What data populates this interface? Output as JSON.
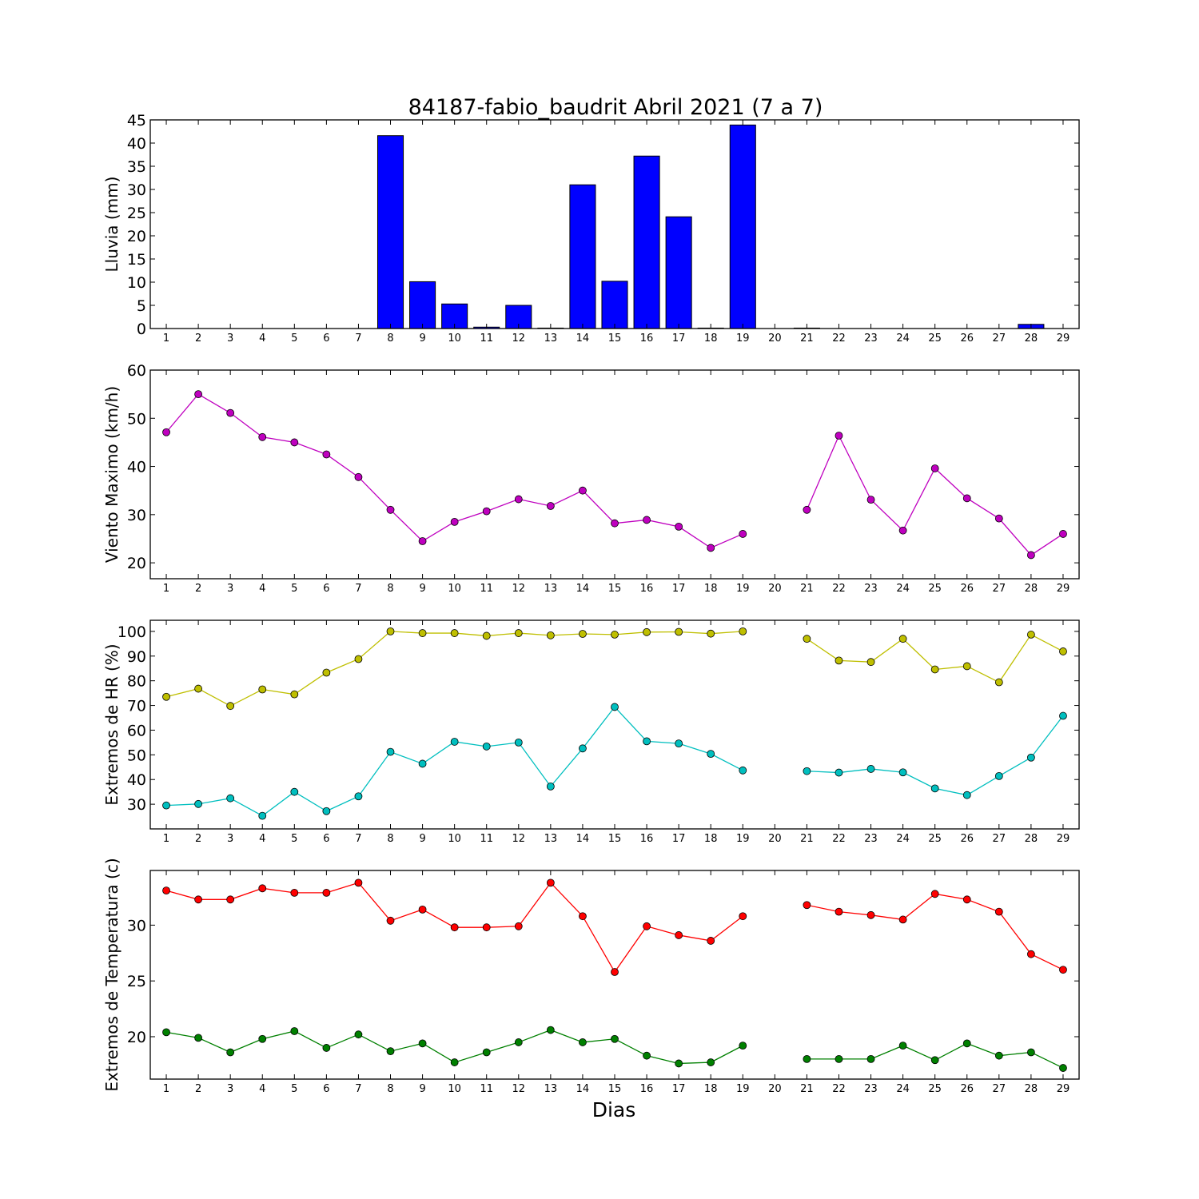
{
  "title": "84187-fabio_baudrit Abril 2021  (7 a 7)",
  "xlabel": "Dias",
  "chart_data": [
    {
      "type": "bar",
      "ylabel": "Lluvia (mm)",
      "categories": [
        1,
        2,
        3,
        4,
        5,
        6,
        7,
        8,
        9,
        10,
        11,
        12,
        13,
        14,
        15,
        16,
        17,
        18,
        19,
        20,
        21,
        22,
        23,
        24,
        25,
        26,
        27,
        28,
        29
      ],
      "x_ticks": [
        "1",
        "2",
        "3",
        "4",
        "5",
        "6",
        "7",
        "8",
        "9",
        "10",
        "11",
        "12",
        "13",
        "14",
        "15",
        "16",
        "17",
        "18",
        "19",
        "20",
        "21",
        "22",
        "23",
        "24",
        "25",
        "26",
        "27",
        "28",
        "29"
      ],
      "ylim": [
        0,
        45
      ],
      "y_ticks": [
        "0",
        "5",
        "10",
        "15",
        "20",
        "25",
        "30",
        "35",
        "40",
        "45"
      ],
      "y_tick_values": [
        0,
        5,
        10,
        15,
        20,
        25,
        30,
        35,
        40,
        45
      ],
      "values": [
        0,
        0,
        0,
        0,
        0,
        0,
        0,
        41.6,
        10.1,
        5.3,
        0.3,
        5.0,
        0.1,
        31.0,
        10.2,
        37.2,
        24.1,
        0.1,
        43.9,
        null,
        0.1,
        0,
        0,
        0,
        0,
        0,
        0,
        0.9,
        null
      ],
      "color": "#0000ff"
    },
    {
      "type": "line",
      "ylabel": "Viento Maximo (km/h)",
      "x": [
        1,
        2,
        3,
        4,
        5,
        6,
        7,
        8,
        9,
        10,
        11,
        12,
        13,
        14,
        15,
        16,
        17,
        18,
        19,
        20,
        21,
        22,
        23,
        24,
        25,
        26,
        27,
        28,
        29
      ],
      "x_ticks": [
        "1",
        "2",
        "3",
        "4",
        "5",
        "6",
        "7",
        "8",
        "9",
        "10",
        "11",
        "12",
        "13",
        "14",
        "15",
        "16",
        "17",
        "18",
        "19",
        "20",
        "21",
        "22",
        "23",
        "24",
        "25",
        "26",
        "27",
        "28",
        "29"
      ],
      "ylim": [
        16.7,
        60
      ],
      "y_ticks": [
        "20",
        "30",
        "40",
        "50",
        "60"
      ],
      "y_tick_values": [
        20,
        30,
        40,
        50,
        60
      ],
      "series": [
        {
          "values": [
            47.1,
            55.0,
            51.1,
            46.1,
            45.0,
            42.5,
            37.8,
            31.0,
            24.5,
            28.5,
            30.7,
            33.2,
            31.8,
            35.0,
            28.2,
            28.9,
            27.5,
            23.1,
            26.0,
            null,
            31.0,
            46.4,
            33.1,
            26.7,
            39.6,
            33.4,
            29.2,
            21.6,
            26.0
          ],
          "color": "#bf00bf"
        }
      ]
    },
    {
      "type": "line",
      "ylabel": "Extremos de HR (%)",
      "x": [
        1,
        2,
        3,
        4,
        5,
        6,
        7,
        8,
        9,
        10,
        11,
        12,
        13,
        14,
        15,
        16,
        17,
        18,
        19,
        20,
        21,
        22,
        23,
        24,
        25,
        26,
        27,
        28,
        29
      ],
      "x_ticks": [
        "1",
        "2",
        "3",
        "4",
        "5",
        "6",
        "7",
        "8",
        "9",
        "10",
        "11",
        "12",
        "13",
        "14",
        "15",
        "16",
        "17",
        "18",
        "19",
        "20",
        "21",
        "22",
        "23",
        "24",
        "25",
        "26",
        "27",
        "28",
        "29"
      ],
      "ylim": [
        20,
        104.5
      ],
      "y_ticks": [
        "30",
        "40",
        "50",
        "60",
        "70",
        "80",
        "90",
        "100"
      ],
      "y_tick_values": [
        30,
        40,
        50,
        60,
        70,
        80,
        90,
        100
      ],
      "series": [
        {
          "values": [
            73.5,
            76.8,
            69.8,
            76.5,
            74.5,
            83.3,
            88.8,
            100.0,
            99.3,
            99.3,
            98.2,
            99.3,
            98.4,
            99.0,
            98.7,
            99.7,
            99.8,
            99.1,
            100.0,
            null,
            97.0,
            88.2,
            87.6,
            97.0,
            84.6,
            85.9,
            79.4,
            98.7,
            91.9
          ],
          "color": "#bfbf00"
        },
        {
          "values": [
            29.5,
            30.1,
            32.4,
            25.3,
            35.0,
            27.2,
            33.2,
            51.2,
            46.4,
            55.3,
            53.4,
            55.0,
            37.2,
            52.6,
            69.4,
            55.5,
            54.6,
            50.4,
            43.7,
            null,
            43.4,
            42.8,
            44.3,
            42.9,
            36.4,
            33.7,
            41.4,
            48.9,
            65.8
          ],
          "color": "#00bfbf"
        }
      ]
    },
    {
      "type": "line",
      "ylabel": "Extremos de Temperatura (c)",
      "x": [
        1,
        2,
        3,
        4,
        5,
        6,
        7,
        8,
        9,
        10,
        11,
        12,
        13,
        14,
        15,
        16,
        17,
        18,
        19,
        20,
        21,
        22,
        23,
        24,
        25,
        26,
        27,
        28,
        29
      ],
      "x_ticks": [
        "1",
        "2",
        "3",
        "4",
        "5",
        "6",
        "7",
        "8",
        "9",
        "10",
        "11",
        "12",
        "13",
        "14",
        "15",
        "16",
        "17",
        "18",
        "19",
        "20",
        "21",
        "22",
        "23",
        "24",
        "25",
        "26",
        "27",
        "28",
        "29"
      ],
      "ylim": [
        16.2,
        34.9
      ],
      "y_ticks": [
        "20",
        "25",
        "30"
      ],
      "y_tick_values": [
        20,
        25,
        30
      ],
      "series": [
        {
          "values": [
            33.1,
            32.3,
            32.3,
            33.3,
            32.9,
            32.9,
            33.8,
            30.4,
            31.4,
            29.8,
            29.8,
            29.9,
            33.8,
            30.8,
            25.8,
            29.9,
            29.1,
            28.6,
            30.8,
            null,
            31.8,
            31.2,
            30.9,
            30.5,
            32.8,
            32.3,
            31.2,
            27.4,
            26.0
          ],
          "color": "#ff0000"
        },
        {
          "values": [
            20.4,
            19.9,
            18.6,
            19.8,
            20.5,
            19.0,
            20.2,
            18.7,
            19.4,
            17.7,
            18.6,
            19.5,
            20.6,
            19.5,
            19.8,
            18.3,
            17.6,
            17.7,
            19.2,
            null,
            18.0,
            18.0,
            18.0,
            19.2,
            17.9,
            19.4,
            18.3,
            18.6,
            17.2
          ],
          "color": "#008000"
        }
      ]
    }
  ]
}
